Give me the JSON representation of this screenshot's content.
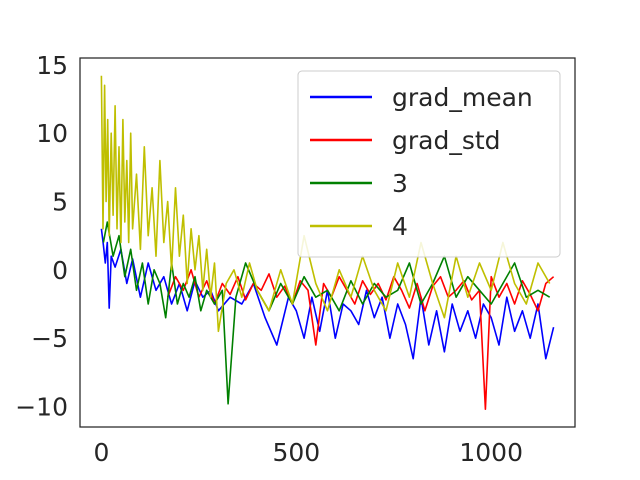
{
  "chart_data": {
    "type": "line",
    "title": "",
    "xlabel": "",
    "ylabel": "",
    "xlim": [
      -55,
      1215
    ],
    "ylim": [
      -11.5,
      15.5
    ],
    "xticks": [
      0,
      500,
      1000
    ],
    "xtick_labels": [
      "0",
      "500",
      "1000"
    ],
    "yticks": [
      -10,
      -5,
      0,
      5,
      10,
      15
    ],
    "ytick_labels": [
      "−10",
      "−5",
      "0",
      "5",
      "10",
      "15"
    ],
    "grid": false,
    "legend_position": "top-right",
    "series": [
      {
        "name": "grad_mean",
        "color": "#0000ff",
        "x": [
          0,
          5,
          10,
          15,
          20,
          25,
          35,
          50,
          65,
          80,
          100,
          120,
          140,
          160,
          180,
          200,
          220,
          240,
          260,
          280,
          300,
          330,
          360,
          390,
          420,
          450,
          480,
          500,
          520,
          540,
          560,
          580,
          600,
          620,
          640,
          660,
          680,
          700,
          720,
          740,
          760,
          780,
          800,
          820,
          840,
          860,
          880,
          900,
          920,
          940,
          960,
          980,
          1000,
          1020,
          1040,
          1060,
          1080,
          1100,
          1120,
          1140,
          1160
        ],
        "y": [
          3,
          1.8,
          0.5,
          2,
          -2.8,
          1,
          0.2,
          1.5,
          -1,
          0.8,
          -2,
          0.5,
          -1.5,
          -0.5,
          -2.5,
          -1,
          -3,
          -0.8,
          -2,
          -1.5,
          -3,
          -2,
          -2.5,
          -1,
          -3.5,
          -5.5,
          -2,
          -3,
          -5,
          -2,
          -4.5,
          -1.5,
          -5,
          -2.5,
          -3,
          -4,
          -1.5,
          -3.5,
          -2,
          -5,
          -2.5,
          -4,
          -6.5,
          -2,
          -5.5,
          -3,
          -6,
          -2.5,
          -4.5,
          -3,
          -5,
          -2.5,
          -3.5,
          -5.5,
          -2,
          -4.5,
          -3,
          -5,
          -2.5,
          -6.5,
          -4.2
        ]
      },
      {
        "name": "grad_std",
        "color": "#ff0000",
        "x": [
          170,
          190,
          210,
          230,
          250,
          270,
          290,
          310,
          330,
          350,
          370,
          390,
          410,
          430,
          450,
          470,
          490,
          510,
          530,
          550,
          570,
          590,
          610,
          630,
          650,
          670,
          690,
          710,
          730,
          750,
          770,
          790,
          810,
          830,
          850,
          870,
          890,
          910,
          930,
          950,
          970,
          985,
          1000,
          1020,
          1040,
          1060,
          1080,
          1100,
          1120,
          1140,
          1160
        ],
        "y": [
          -2,
          -0.5,
          -1.5,
          0,
          -2,
          -0.8,
          -2.5,
          -1,
          -1.8,
          -0.5,
          -2.2,
          -1,
          -1.5,
          -0.3,
          -2,
          -1.2,
          -2.5,
          -0.8,
          -1.5,
          -5.5,
          -1,
          -2,
          -0.5,
          -1.5,
          -2.5,
          -0.8,
          -1.8,
          -1,
          -2.2,
          -0.5,
          -1.5,
          -2.8,
          -1,
          -3,
          -1.2,
          -0.5,
          -2,
          -1.5,
          -0.8,
          -2.2,
          -1.5,
          -10.2,
          -0.5,
          -2,
          -1,
          -2.5,
          -0.8,
          -1.8,
          -3,
          -1,
          -0.5
        ]
      },
      {
        "name": "3",
        "color": "#008000",
        "x": [
          5,
          15,
          30,
          45,
          60,
          75,
          90,
          105,
          120,
          135,
          150,
          165,
          180,
          195,
          210,
          225,
          240,
          255,
          270,
          290,
          310,
          325,
          345,
          370,
          400,
          430,
          460,
          490,
          520,
          550,
          580,
          610,
          640,
          670,
          700,
          730,
          760,
          790,
          820,
          850,
          880,
          910,
          940,
          970,
          1000,
          1030,
          1060,
          1090,
          1120,
          1150
        ],
        "y": [
          2,
          3.5,
          1,
          2.5,
          -0.5,
          1.5,
          -1.5,
          0.5,
          -2.5,
          0,
          -1,
          -3.5,
          0.5,
          -2.5,
          -1,
          -2,
          -0.5,
          -3,
          -1.5,
          -2.5,
          -1.5,
          -9.8,
          -2,
          0.5,
          -1.5,
          -3,
          -1,
          -2.5,
          -0.5,
          -2,
          -1.5,
          -3,
          -0.8,
          -2.5,
          -1,
          -2,
          -1.5,
          0.5,
          -2.5,
          -1,
          1,
          -2,
          -0.5,
          -1.5,
          -2.5,
          -1,
          0.5,
          -2,
          -1.5,
          -2
        ]
      },
      {
        "name": "4",
        "color": "#bfbf00",
        "x": [
          0,
          4,
          8,
          12,
          16,
          20,
          25,
          30,
          35,
          40,
          45,
          50,
          55,
          60,
          65,
          70,
          75,
          80,
          90,
          100,
          110,
          120,
          130,
          140,
          150,
          160,
          170,
          180,
          190,
          200,
          210,
          220,
          230,
          240,
          250,
          260,
          270,
          280,
          290,
          300,
          320,
          340,
          360,
          380,
          400,
          430,
          460,
          490,
          520,
          550,
          580,
          610,
          640,
          670,
          700,
          730,
          760,
          790,
          820,
          850,
          880,
          910,
          940,
          970,
          1000,
          1030,
          1060,
          1090,
          1120,
          1150
        ],
        "y": [
          14.2,
          3,
          13.5,
          5,
          11,
          2.5,
          10,
          4,
          12,
          3,
          9,
          2,
          11,
          3.5,
          8,
          2,
          10,
          3,
          7,
          1.5,
          9,
          2.5,
          6,
          1,
          8,
          2,
          5,
          0,
          6,
          1,
          4,
          -1,
          3,
          0,
          2.5,
          -1.5,
          1.5,
          -2,
          0.5,
          -4.5,
          -1,
          0,
          -2,
          0.5,
          -1.5,
          -3,
          0,
          -2.5,
          2.5,
          -1,
          -3,
          0,
          -2,
          1,
          -1.5,
          -3,
          0.5,
          -2,
          2,
          -1,
          -3.5,
          1,
          -2,
          0.5,
          -1.5,
          2,
          -1,
          -2.5,
          0.5,
          -1
        ]
      }
    ]
  }
}
